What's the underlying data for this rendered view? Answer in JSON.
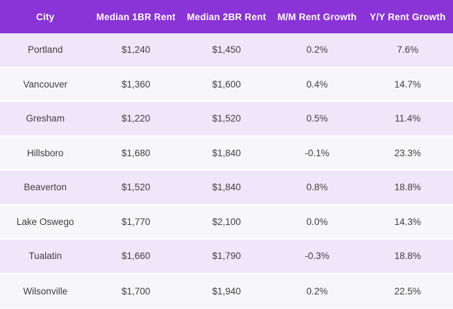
{
  "chart_data": {
    "type": "table",
    "columns": [
      "City",
      "Median 1BR Rent",
      "Median 2BR Rent",
      "M/M Rent Growth",
      "Y/Y Rent Growth"
    ],
    "rows": [
      [
        "Portland",
        "$1,240",
        "$1,450",
        "0.2%",
        "7.6%"
      ],
      [
        "Vancouver",
        "$1,360",
        "$1,600",
        "0.4%",
        "14.7%"
      ],
      [
        "Gresham",
        "$1,220",
        "$1,520",
        "0.5%",
        "11.4%"
      ],
      [
        "Hillsboro",
        "$1,680",
        "$1,840",
        "-0.1%",
        "23.3%"
      ],
      [
        "Beaverton",
        "$1,520",
        "$1,840",
        "0.8%",
        "18.8%"
      ],
      [
        "Lake Oswego",
        "$1,770",
        "$2,100",
        "0.0%",
        "14.3%"
      ],
      [
        "Tualatin",
        "$1,660",
        "$1,790",
        "-0.3%",
        "18.8%"
      ],
      [
        "Wilsonville",
        "$1,700",
        "$1,940",
        "0.2%",
        "22.5%"
      ]
    ]
  },
  "colors": {
    "header_bg": "#8a33d6",
    "header_text": "#ffffff",
    "row_alt_bg": "#f0e6fa",
    "row_plain_bg": "#f7f6f8",
    "body_text": "#3f3f3f",
    "row_separator": "#ffffff"
  }
}
